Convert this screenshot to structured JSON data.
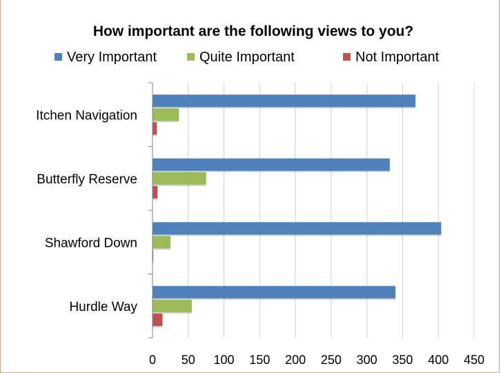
{
  "chart_data": {
    "type": "bar",
    "orientation": "horizontal",
    "title": "How important are the following views to you?",
    "xlabel": "",
    "ylabel": "",
    "categories": [
      "Itchen Navigation",
      "Butterfly Reserve",
      "Shawford Down",
      "Hurdle Way"
    ],
    "series": [
      {
        "name": "Very Important",
        "color": "#4f81bd",
        "values": [
          368,
          332,
          404,
          340
        ]
      },
      {
        "name": "Quite Important",
        "color": "#9bbb59",
        "values": [
          37,
          75,
          25,
          55
        ]
      },
      {
        "name": "Not Important",
        "color": "#c0504d",
        "values": [
          6,
          7,
          1,
          14
        ]
      }
    ],
    "xlim": [
      0,
      450
    ],
    "x_ticks": [
      "0",
      "50",
      "100",
      "150",
      "200",
      "250",
      "300",
      "350",
      "400",
      "450"
    ],
    "grid": true,
    "legend_position": "top"
  }
}
